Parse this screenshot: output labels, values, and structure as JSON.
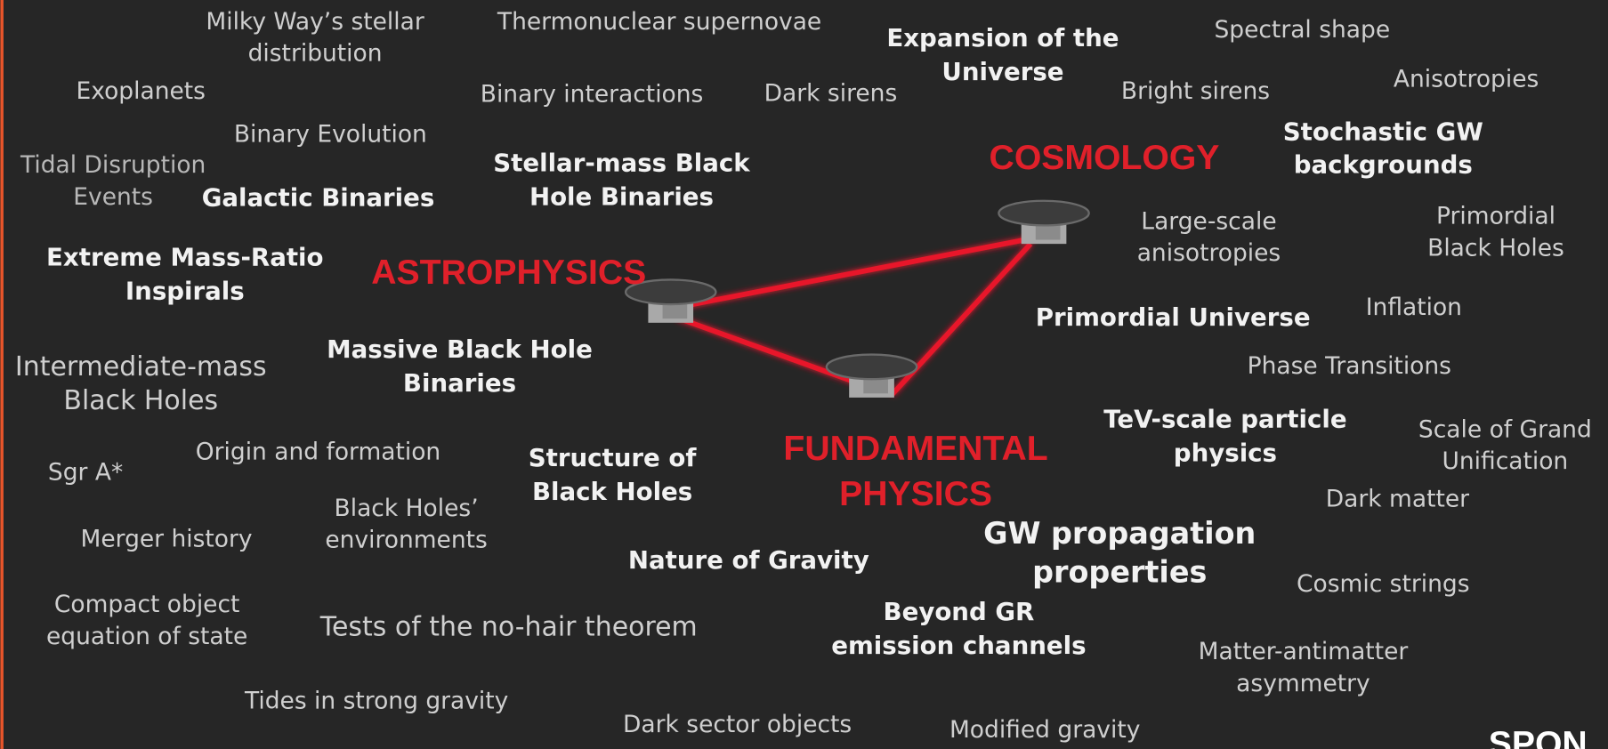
{
  "headings": [
    [
      "ASTROPHYSICS"
    ],
    [
      "COSMOLOGY"
    ],
    [
      "FUNDAMENTAL",
      "PHYSICS"
    ]
  ],
  "terms": [
    [
      "Milky Way’s stellar",
      "distribution"
    ],
    [
      "Thermonuclear supernovae"
    ],
    [
      "Expansion of the",
      "Universe"
    ],
    [
      "Spectral shape"
    ],
    [
      "Anisotropies"
    ],
    [
      "Exoplanets"
    ],
    [
      "Binary interactions"
    ],
    [
      "Dark sirens"
    ],
    [
      "Bright sirens"
    ],
    [
      "Binary Evolution"
    ],
    [
      "Stochastic GW",
      "backgrounds"
    ],
    [
      "Tidal Disruption",
      "Events"
    ],
    [
      "Galactic Binaries"
    ],
    [
      "Stellar-mass Black",
      "Hole Binaries"
    ],
    [
      "Large-scale",
      "anisotropies"
    ],
    [
      "Primordial",
      "Black Holes"
    ],
    [
      "Extreme Mass-Ratio",
      "Inspirals"
    ],
    [
      "Primordial Universe"
    ],
    [
      "Inflation"
    ],
    [
      "Massive Black Hole",
      "Binaries"
    ],
    [
      "Intermediate-mass",
      "Black Holes"
    ],
    [
      "Phase Transitions"
    ],
    [
      "TeV-scale particle",
      "physics"
    ],
    [
      "Scale of Grand",
      "Unification"
    ],
    [
      "Origin and formation"
    ],
    [
      "Sgr A*"
    ],
    [
      "Structure of",
      "Black Holes"
    ],
    [
      "Black Holes’",
      "environments"
    ],
    [
      "Dark matter"
    ],
    [
      "GW propagation",
      "properties"
    ],
    [
      "Merger history"
    ],
    [
      "Nature of Gravity"
    ],
    [
      "Cosmic strings"
    ],
    [
      "Compact object",
      "equation of state"
    ],
    [
      "Tests of the no-hair theorem"
    ],
    [
      "Beyond GR",
      "emission channels"
    ],
    [
      "Matter-antimatter",
      "asymmetry"
    ],
    [
      "Tides in strong gravity"
    ],
    [
      "Dark sector objects"
    ],
    [
      "Modified gravity"
    ]
  ],
  "logo": "SPON"
}
